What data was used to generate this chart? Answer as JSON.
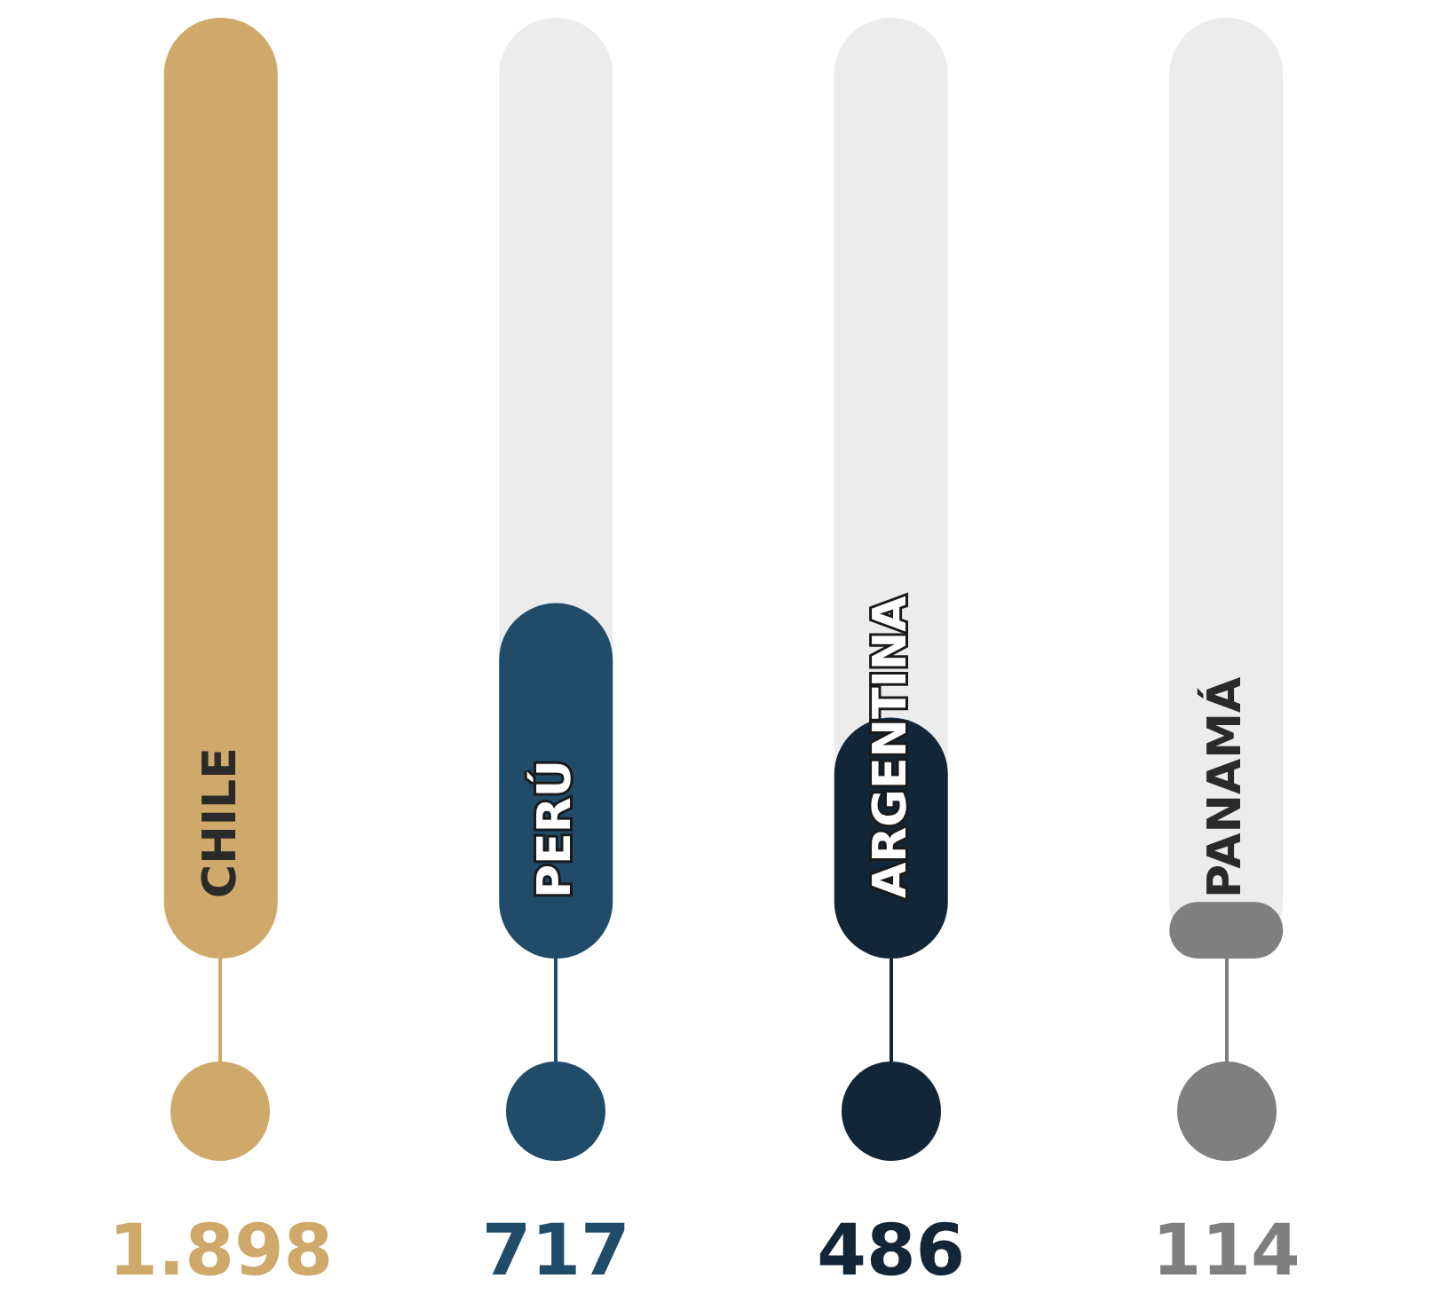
{
  "chart_data": {
    "type": "bar",
    "categories": [
      "CHILE",
      "PERÚ",
      "ARGENTINA",
      "PANAMÁ"
    ],
    "values": [
      1898,
      717,
      486,
      114
    ],
    "colors": [
      "#cfa96a",
      "#204b69",
      "#132638",
      "#7f7f7f"
    ],
    "value_labels": [
      "1.898",
      "717",
      "486",
      "114"
    ],
    "grid": false
  }
}
